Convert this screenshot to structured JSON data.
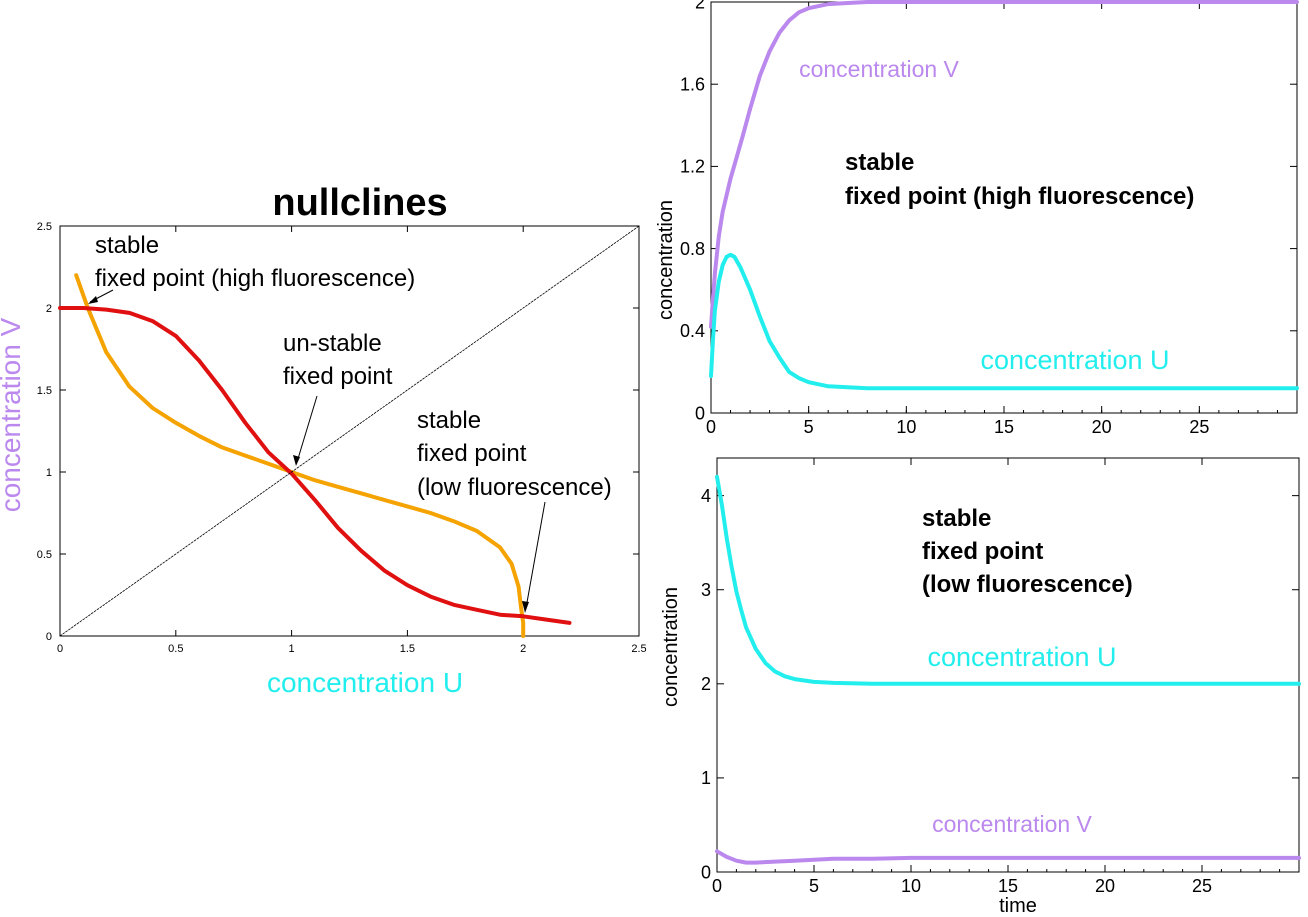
{
  "colors": {
    "u": "#22eeee",
    "v": "#bb88ee",
    "u_nullcline": "#f5a300",
    "v_nullcline": "#e01010",
    "diagonal": "#000000",
    "axis": "#000000"
  },
  "chart_data": [
    {
      "id": "nullclines",
      "type": "line",
      "title": "nullclines",
      "xlabel": "concentration U",
      "ylabel": "concentration V",
      "xlim": [
        0,
        2.5
      ],
      "ylim": [
        0,
        2.5
      ],
      "xticks": [
        "0",
        "0.5",
        "1",
        "1.5",
        "2",
        "2.5"
      ],
      "yticks": [
        "0",
        "0.5",
        "1",
        "1.5",
        "2",
        "2.5"
      ],
      "grid": false,
      "series": [
        {
          "role": "u-nullcline",
          "color": "#f5a300",
          "x": [
            0.07,
            0.12,
            0.2,
            0.3,
            0.4,
            0.5,
            0.6,
            0.7,
            0.8,
            0.9,
            1.0,
            1.1,
            1.2,
            1.3,
            1.4,
            1.5,
            1.6,
            1.7,
            1.8,
            1.9,
            1.95,
            1.98,
            1.99,
            2.0,
            2.0
          ],
          "y": [
            2.2,
            2.0,
            1.73,
            1.52,
            1.39,
            1.3,
            1.22,
            1.15,
            1.1,
            1.05,
            1.0,
            0.95,
            0.91,
            0.87,
            0.83,
            0.79,
            0.75,
            0.7,
            0.64,
            0.54,
            0.44,
            0.3,
            0.18,
            0.08,
            0.0
          ]
        },
        {
          "role": "v-nullcline",
          "color": "#e01010",
          "x": [
            0.0,
            0.1,
            0.2,
            0.3,
            0.4,
            0.5,
            0.6,
            0.7,
            0.8,
            0.9,
            1.0,
            1.1,
            1.2,
            1.3,
            1.4,
            1.5,
            1.6,
            1.7,
            1.8,
            1.9,
            2.0,
            2.1,
            2.2
          ],
          "y": [
            2.0,
            2.0,
            1.99,
            1.97,
            1.92,
            1.83,
            1.68,
            1.5,
            1.3,
            1.12,
            0.99,
            0.83,
            0.66,
            0.52,
            0.4,
            0.31,
            0.24,
            0.19,
            0.16,
            0.13,
            0.12,
            0.1,
            0.08
          ]
        },
        {
          "role": "diagonal",
          "color": "#000000",
          "x": [
            0,
            2.5
          ],
          "y": [
            0,
            2.5
          ]
        }
      ],
      "annotations": [
        {
          "lines": [
            "stable",
            "fixed point (high fluorescence)"
          ],
          "point": [
            0.12,
            2.0
          ]
        },
        {
          "lines": [
            "un-stable",
            "fixed point"
          ],
          "point": [
            1.0,
            1.0
          ]
        },
        {
          "lines": [
            "stable",
            "fixed point",
            "(low fluorescence)"
          ],
          "point": [
            2.0,
            0.12
          ]
        }
      ]
    },
    {
      "id": "high-fluorescence",
      "type": "line",
      "xlabel": "",
      "ylabel": "concentration",
      "xlim": [
        0,
        30
      ],
      "ylim": [
        0,
        2
      ],
      "xticks": [
        "0",
        "5",
        "10",
        "15",
        "20",
        "25"
      ],
      "yticks": [
        "0",
        "0.4",
        "0.8",
        "1.2",
        "1.6",
        "2"
      ],
      "grid": false,
      "annotation": [
        "stable",
        "fixed point (high fluorescence)"
      ],
      "series": [
        {
          "name": "concentration V",
          "color": "#bb88ee",
          "x": [
            0,
            0.1,
            0.2,
            0.4,
            0.6,
            0.8,
            1.0,
            1.3,
            1.6,
            2.0,
            2.5,
            3.0,
            3.5,
            4.0,
            4.5,
            5.0,
            6.0,
            7.0,
            8.0,
            10.0,
            15.0,
            20.0,
            30.0
          ],
          "y": [
            0.42,
            0.56,
            0.68,
            0.86,
            0.98,
            1.06,
            1.14,
            1.24,
            1.34,
            1.48,
            1.64,
            1.76,
            1.85,
            1.91,
            1.95,
            1.97,
            1.99,
            1.995,
            2.0,
            2.0,
            2.0,
            2.0,
            2.0
          ]
        },
        {
          "name": "concentration U",
          "color": "#22eeee",
          "x": [
            0,
            0.1,
            0.2,
            0.4,
            0.6,
            0.8,
            1.0,
            1.2,
            1.5,
            2.0,
            2.5,
            3.0,
            3.5,
            4.0,
            4.5,
            5.0,
            6.0,
            7.0,
            8.0,
            10.0,
            15.0,
            20.0,
            30.0
          ],
          "y": [
            0.18,
            0.36,
            0.5,
            0.64,
            0.72,
            0.76,
            0.77,
            0.76,
            0.71,
            0.6,
            0.47,
            0.35,
            0.27,
            0.2,
            0.17,
            0.15,
            0.13,
            0.125,
            0.12,
            0.12,
            0.12,
            0.12,
            0.12
          ]
        }
      ]
    },
    {
      "id": "low-fluorescence",
      "type": "line",
      "xlabel": "time",
      "ylabel": "concentration",
      "xlim": [
        0,
        30
      ],
      "ylim": [
        0,
        4.4
      ],
      "xticks": [
        "0",
        "5",
        "10",
        "15",
        "20",
        "25"
      ],
      "yticks": [
        "0",
        "1",
        "2",
        "3",
        "4"
      ],
      "grid": false,
      "annotation": [
        "stable",
        "fixed point",
        "(low fluorescence)"
      ],
      "series": [
        {
          "name": "concentration U",
          "color": "#22eeee",
          "x": [
            0,
            0.25,
            0.5,
            0.75,
            1.0,
            1.25,
            1.5,
            2.0,
            2.5,
            3.0,
            3.5,
            4.0,
            5.0,
            6.0,
            8.0,
            10.0,
            15.0,
            20.0,
            30.0
          ],
          "y": [
            4.2,
            3.9,
            3.55,
            3.25,
            2.98,
            2.78,
            2.6,
            2.37,
            2.22,
            2.13,
            2.08,
            2.05,
            2.02,
            2.01,
            2.0,
            2.0,
            2.0,
            2.0,
            2.0
          ]
        },
        {
          "name": "concentration V",
          "color": "#bb88ee",
          "x": [
            0,
            0.5,
            1.0,
            1.5,
            2.0,
            3.0,
            4.0,
            5.0,
            6.0,
            8.0,
            10.0,
            15.0,
            20.0,
            30.0
          ],
          "y": [
            0.22,
            0.16,
            0.12,
            0.1,
            0.1,
            0.11,
            0.12,
            0.13,
            0.14,
            0.14,
            0.15,
            0.15,
            0.15,
            0.15
          ]
        }
      ]
    }
  ]
}
